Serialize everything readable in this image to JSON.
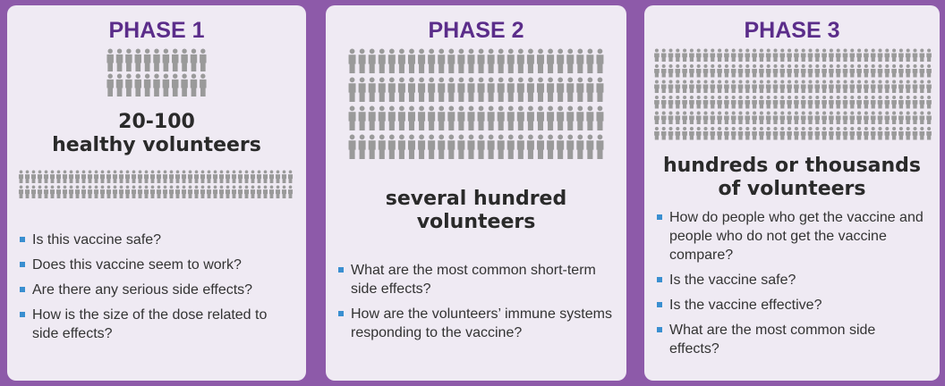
{
  "panels": [
    {
      "title": "PHASE 1",
      "participants": [
        "20-100",
        "healthy volunteers"
      ],
      "questions": [
        "Is this vaccine safe?",
        "Does this vaccine seem to work?",
        "Are there any serious side effects?",
        "How is the size of the dose related to side effects?"
      ]
    },
    {
      "title": "PHASE 2",
      "participants": [
        "several hundred",
        "volunteers"
      ],
      "questions": [
        "What are the most common short-term side effects?",
        "How are the volunteers’ immune systems responding to the vaccine?"
      ]
    },
    {
      "title": "PHASE 3",
      "participants": [
        "hundreds or thousands",
        "of volunteers"
      ],
      "questions": [
        "How do people who get the vaccine and people who do not get the vaccine compare?",
        "Is the vaccine safe?",
        "Is the vaccine effective?",
        "What are the most common side effects?"
      ]
    }
  ]
}
